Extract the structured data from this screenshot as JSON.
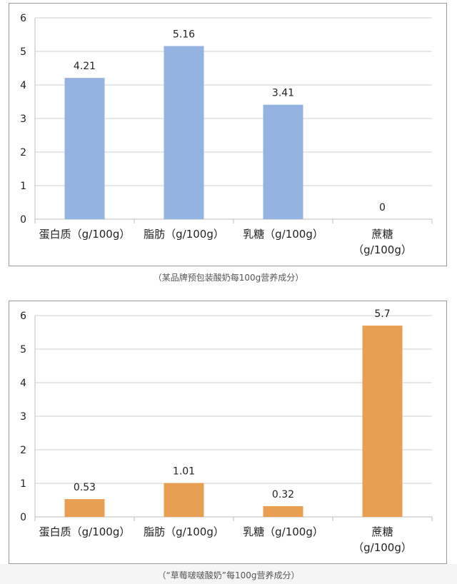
{
  "chart_data": [
    {
      "type": "bar",
      "categories": [
        "蛋白质（g/100g）",
        "脂肪（g/100g）",
        "乳糖（g/100g）",
        "蔗糖（g/100g）"
      ],
      "category_lines": [
        [
          "蛋白质（g/100g）"
        ],
        [
          "脂肪（g/100g）"
        ],
        [
          "乳糖（g/100g）"
        ],
        [
          "蔗糖",
          "（g/100g）"
        ]
      ],
      "values": [
        4.21,
        5.16,
        3.41,
        0
      ],
      "value_labels": [
        "4.21",
        "5.16",
        "3.41",
        "0"
      ],
      "ylim": [
        0,
        6
      ],
      "yticks": [
        "0",
        "1",
        "2",
        "3",
        "4",
        "5",
        "6"
      ],
      "grid": true,
      "bar_color": "#95b3e0",
      "caption": "（某品牌预包装酸奶每100g营养成分）"
    },
    {
      "type": "bar",
      "categories": [
        "蛋白质（g/100g）",
        "脂肪（g/100g）",
        "乳糖（g/100g）",
        "蔗糖（g/100g）"
      ],
      "category_lines": [
        [
          "蛋白质（g/100g）"
        ],
        [
          "脂肪（g/100g）"
        ],
        [
          "乳糖（g/100g）"
        ],
        [
          "蔗糖",
          "（g/100g）"
        ]
      ],
      "values": [
        0.53,
        1.01,
        0.32,
        5.7
      ],
      "value_labels": [
        "0.53",
        "1.01",
        "0.32",
        "5.7"
      ],
      "ylim": [
        0,
        6
      ],
      "yticks": [
        "0",
        "1",
        "2",
        "3",
        "4",
        "5",
        "6"
      ],
      "grid": true,
      "bar_color": "#e89f52",
      "caption": "（“草莓啵啵酸奶”每100g营养成分）"
    }
  ]
}
